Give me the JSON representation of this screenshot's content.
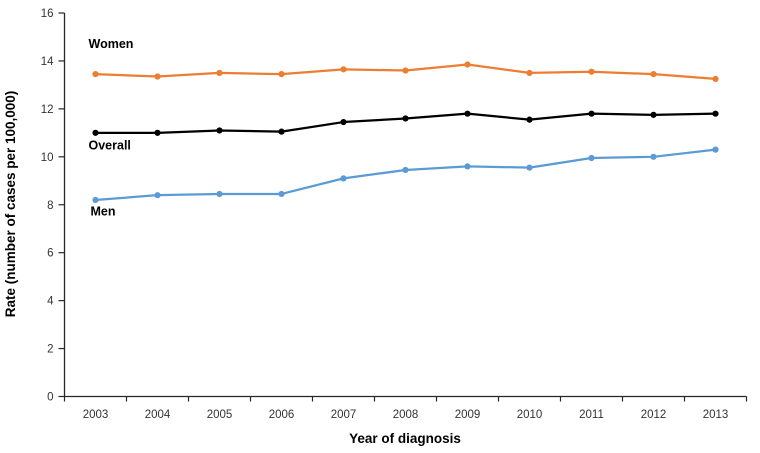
{
  "chart_data": {
    "type": "line",
    "title": "",
    "xlabel": "Year of diagnosis",
    "ylabel": "Rate (number of cases per 100,000)",
    "categories": [
      "2003",
      "2004",
      "2005",
      "2006",
      "2007",
      "2008",
      "2009",
      "2010",
      "2011",
      "2012",
      "2013"
    ],
    "y_ticks": [
      0,
      2,
      4,
      6,
      8,
      10,
      12,
      14,
      16
    ],
    "ylim": [
      0,
      16
    ],
    "grid": false,
    "legend_position": "inline-labels",
    "series": [
      {
        "name": "Women",
        "color": "#ED7D31",
        "values": [
          13.45,
          13.35,
          13.5,
          13.45,
          13.65,
          13.6,
          13.85,
          13.5,
          13.55,
          13.45,
          13.25
        ]
      },
      {
        "name": "Overall",
        "color": "#000000",
        "values": [
          11.0,
          11.0,
          11.1,
          11.05,
          11.45,
          11.6,
          11.8,
          11.55,
          11.8,
          11.75,
          11.8
        ]
      },
      {
        "name": "Men",
        "color": "#5B9BD5",
        "values": [
          8.2,
          8.4,
          8.45,
          8.45,
          9.1,
          9.45,
          9.6,
          9.55,
          9.95,
          10.0,
          10.3
        ]
      }
    ],
    "annotations": [
      {
        "text": "Women",
        "x_year": "2003",
        "y_value": 14.55,
        "dx": -7
      },
      {
        "text": "Overall",
        "x_year": "2003",
        "y_value": 10.3,
        "dx": -7
      },
      {
        "text": "Men",
        "x_year": "2003",
        "y_value": 7.55,
        "dx": -5
      }
    ]
  },
  "colors": {
    "background": "#ffffff",
    "axis_line": "#262626",
    "tick_label": "#333333",
    "women_line": "#ED7D31",
    "overall_line": "#000000",
    "men_line": "#5B9BD5"
  }
}
